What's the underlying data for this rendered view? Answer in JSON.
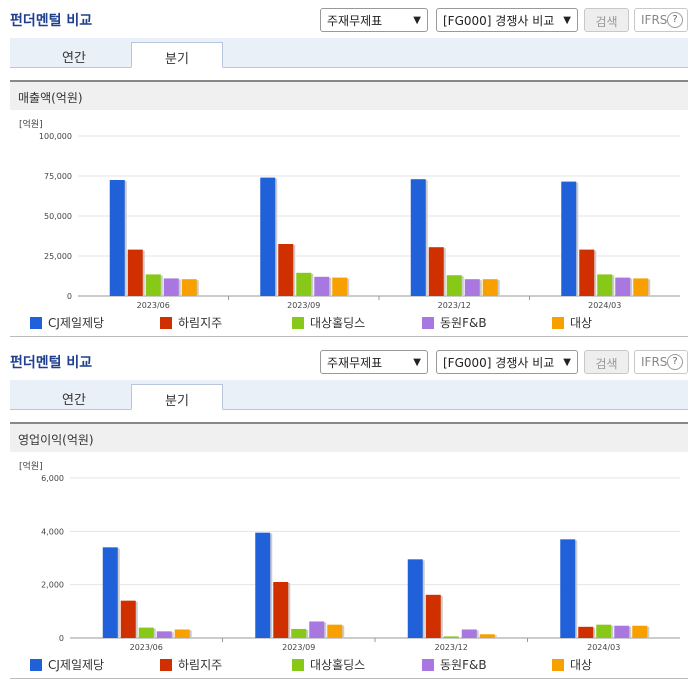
{
  "sections": [
    {
      "title": "펀더멘털 비교",
      "select1": "주재무제표",
      "select2": "[FG000] 경쟁사 비교",
      "search_label": "검색",
      "ifrs_label": "IFRS",
      "ifrs_help": "?",
      "tabs": [
        {
          "label": "연간"
        },
        {
          "label": "분기"
        }
      ],
      "chart_title": "매출액(억원)",
      "unit": "[억원]"
    },
    {
      "title": "펀더멘털 비교",
      "select1": "주재무제표",
      "select2": "[FG000] 경쟁사 비교",
      "search_label": "검색",
      "ifrs_label": "IFRS",
      "ifrs_help": "?",
      "tabs": [
        {
          "label": "연간"
        },
        {
          "label": "분기"
        }
      ],
      "chart_title": "영업이익(억원)",
      "unit": "[억원]"
    }
  ],
  "colors": [
    "#2060d8",
    "#d03000",
    "#88c818",
    "#a878e0",
    "#f8a000"
  ],
  "chart_data": [
    {
      "type": "bar",
      "title": "매출액(억원)",
      "categories": [
        "2023/06",
        "2023/09",
        "2023/12",
        "2024/03"
      ],
      "ylim": [
        0,
        100000
      ],
      "yticks": [
        "0",
        "25,000",
        "50,000",
        "75,000",
        "100,000"
      ],
      "ytick_values": [
        0,
        25000,
        50000,
        75000,
        100000
      ],
      "series": [
        {
          "name": "CJ제일제당",
          "values": [
            72500,
            74000,
            73000,
            71500
          ]
        },
        {
          "name": "하림지주",
          "values": [
            29000,
            32500,
            30500,
            29000
          ]
        },
        {
          "name": "대상홀딩스",
          "values": [
            13500,
            14500,
            13000,
            13500
          ]
        },
        {
          "name": "동원F&B",
          "values": [
            11000,
            12000,
            10500,
            11500
          ]
        },
        {
          "name": "대상",
          "values": [
            10500,
            11500,
            10500,
            11000
          ]
        }
      ],
      "legend": "bottom",
      "grid": true
    },
    {
      "type": "bar",
      "title": "영업이익(억원)",
      "categories": [
        "2023/06",
        "2023/09",
        "2023/12",
        "2024/03"
      ],
      "ylim": [
        0,
        6000
      ],
      "yticks": [
        "0",
        "2,000",
        "4,000",
        "6,000"
      ],
      "ytick_values": [
        0,
        2000,
        4000,
        6000
      ],
      "series": [
        {
          "name": "CJ제일제당",
          "values": [
            3400,
            3950,
            2950,
            3700
          ]
        },
        {
          "name": "하림지주",
          "values": [
            1400,
            2100,
            1620,
            420
          ]
        },
        {
          "name": "대상홀딩스",
          "values": [
            390,
            340,
            60,
            500
          ]
        },
        {
          "name": "동원F&B",
          "values": [
            250,
            620,
            320,
            460
          ]
        },
        {
          "name": "대상",
          "values": [
            320,
            500,
            140,
            460
          ]
        }
      ],
      "legend": "bottom",
      "grid": true
    }
  ]
}
